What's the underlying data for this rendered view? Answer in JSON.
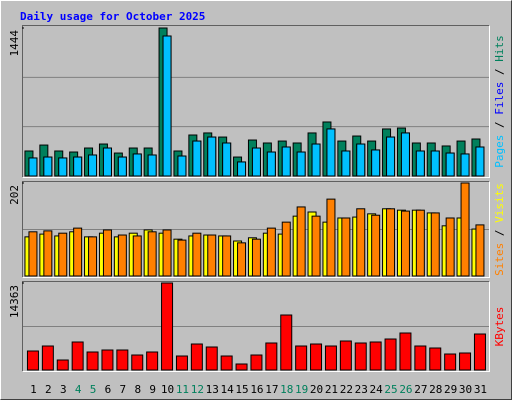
{
  "chart_data": {
    "type": "bar",
    "title": "Daily usage for October 2025",
    "categories": [
      "1",
      "2",
      "3",
      "4",
      "5",
      "6",
      "7",
      "8",
      "9",
      "10",
      "11",
      "12",
      "13",
      "14",
      "15",
      "16",
      "17",
      "18",
      "19",
      "20",
      "21",
      "22",
      "23",
      "24",
      "25",
      "26",
      "27",
      "28",
      "29",
      "30",
      "31"
    ],
    "category_colors": [
      "#000000",
      "#000000",
      "#000000",
      "#00805c",
      "#00805c",
      "#000000",
      "#000000",
      "#000000",
      "#000000",
      "#000000",
      "#00805c",
      "#00805c",
      "#000000",
      "#000000",
      "#000000",
      "#000000",
      "#000000",
      "#00805c",
      "#00805c",
      "#000000",
      "#000000",
      "#000000",
      "#000000",
      "#000000",
      "#00805c",
      "#00805c",
      "#000000",
      "#000000",
      "#000000",
      "#000000",
      "#000000"
    ],
    "legend_separator": " / ",
    "panels": [
      {
        "ylim": [
          0,
          1444
        ],
        "yticks": [
          1444
        ],
        "series": [
          {
            "name": "Hits",
            "color": "#00805c",
            "values": [
              244,
              302,
              244,
              234,
              273,
              312,
              224,
              273,
              273,
              1444,
              244,
              400,
              420,
              380,
              185,
              351,
              322,
              341,
              322,
              420,
              527,
              341,
              390,
              341,
              459,
              468,
              322,
              322,
              293,
              341,
              361
            ]
          },
          {
            "name": "Files",
            "color": "#0000ff",
            "values": [
              176,
              185,
              176,
              185,
              205,
              273,
              185,
              215,
              205,
              1366,
              195,
              341,
              380,
              322,
              137,
              273,
              234,
              283,
              234,
              312,
              459,
              244,
              312,
              254,
              380,
              420,
              244,
              244,
              224,
              215,
              283
            ]
          },
          {
            "name": "Pages",
            "color": "#00c0ff",
            "values": [
              176,
              185,
              176,
              185,
              205,
              273,
              185,
              215,
              205,
              1366,
              195,
              341,
              380,
              322,
              137,
              273,
              234,
              283,
              234,
              312,
              459,
              244,
              312,
              254,
              380,
              420,
              244,
              244,
              224,
              215,
              283
            ]
          }
        ]
      },
      {
        "ylim": [
          0,
          202
        ],
        "yticks": [
          202
        ],
        "series": [
          {
            "name": "Visits",
            "color": "#ffff00",
            "values": [
              85,
              91,
              87,
              96,
              85,
              93,
              85,
              93,
              100,
              93,
              80,
              87,
              89,
              87,
              76,
              83,
              93,
              91,
              130,
              139,
              117,
              126,
              128,
              135,
              146,
              143,
              143,
              137,
              109,
              126,
              102
            ]
          },
          {
            "name": "Sites",
            "color": "#ff8000",
            "values": [
              96,
              98,
              93,
              104,
              85,
              100,
              89,
              87,
              96,
              100,
              78,
              93,
              89,
              87,
              72,
              80,
              104,
              117,
              150,
              130,
              167,
              126,
              146,
              132,
              146,
              141,
              143,
              137,
              126,
              202,
              111
            ]
          }
        ]
      },
      {
        "ylim": [
          0,
          14363
        ],
        "yticks": [
          14363
        ],
        "series": [
          {
            "name": "KBytes",
            "color": "#ff0000",
            "values": [
              3137,
              3962,
              1651,
              4623,
              2972,
              3302,
              3302,
              2476,
              2972,
              14363,
              2311,
              4292,
              3797,
              2311,
              991,
              2476,
              4458,
              9080,
              3962,
              4292,
              3962,
              4788,
              4458,
              4623,
              5118,
              6108,
              3962,
              3632,
              2641,
              2807,
              5943
            ]
          }
        ]
      }
    ]
  }
}
